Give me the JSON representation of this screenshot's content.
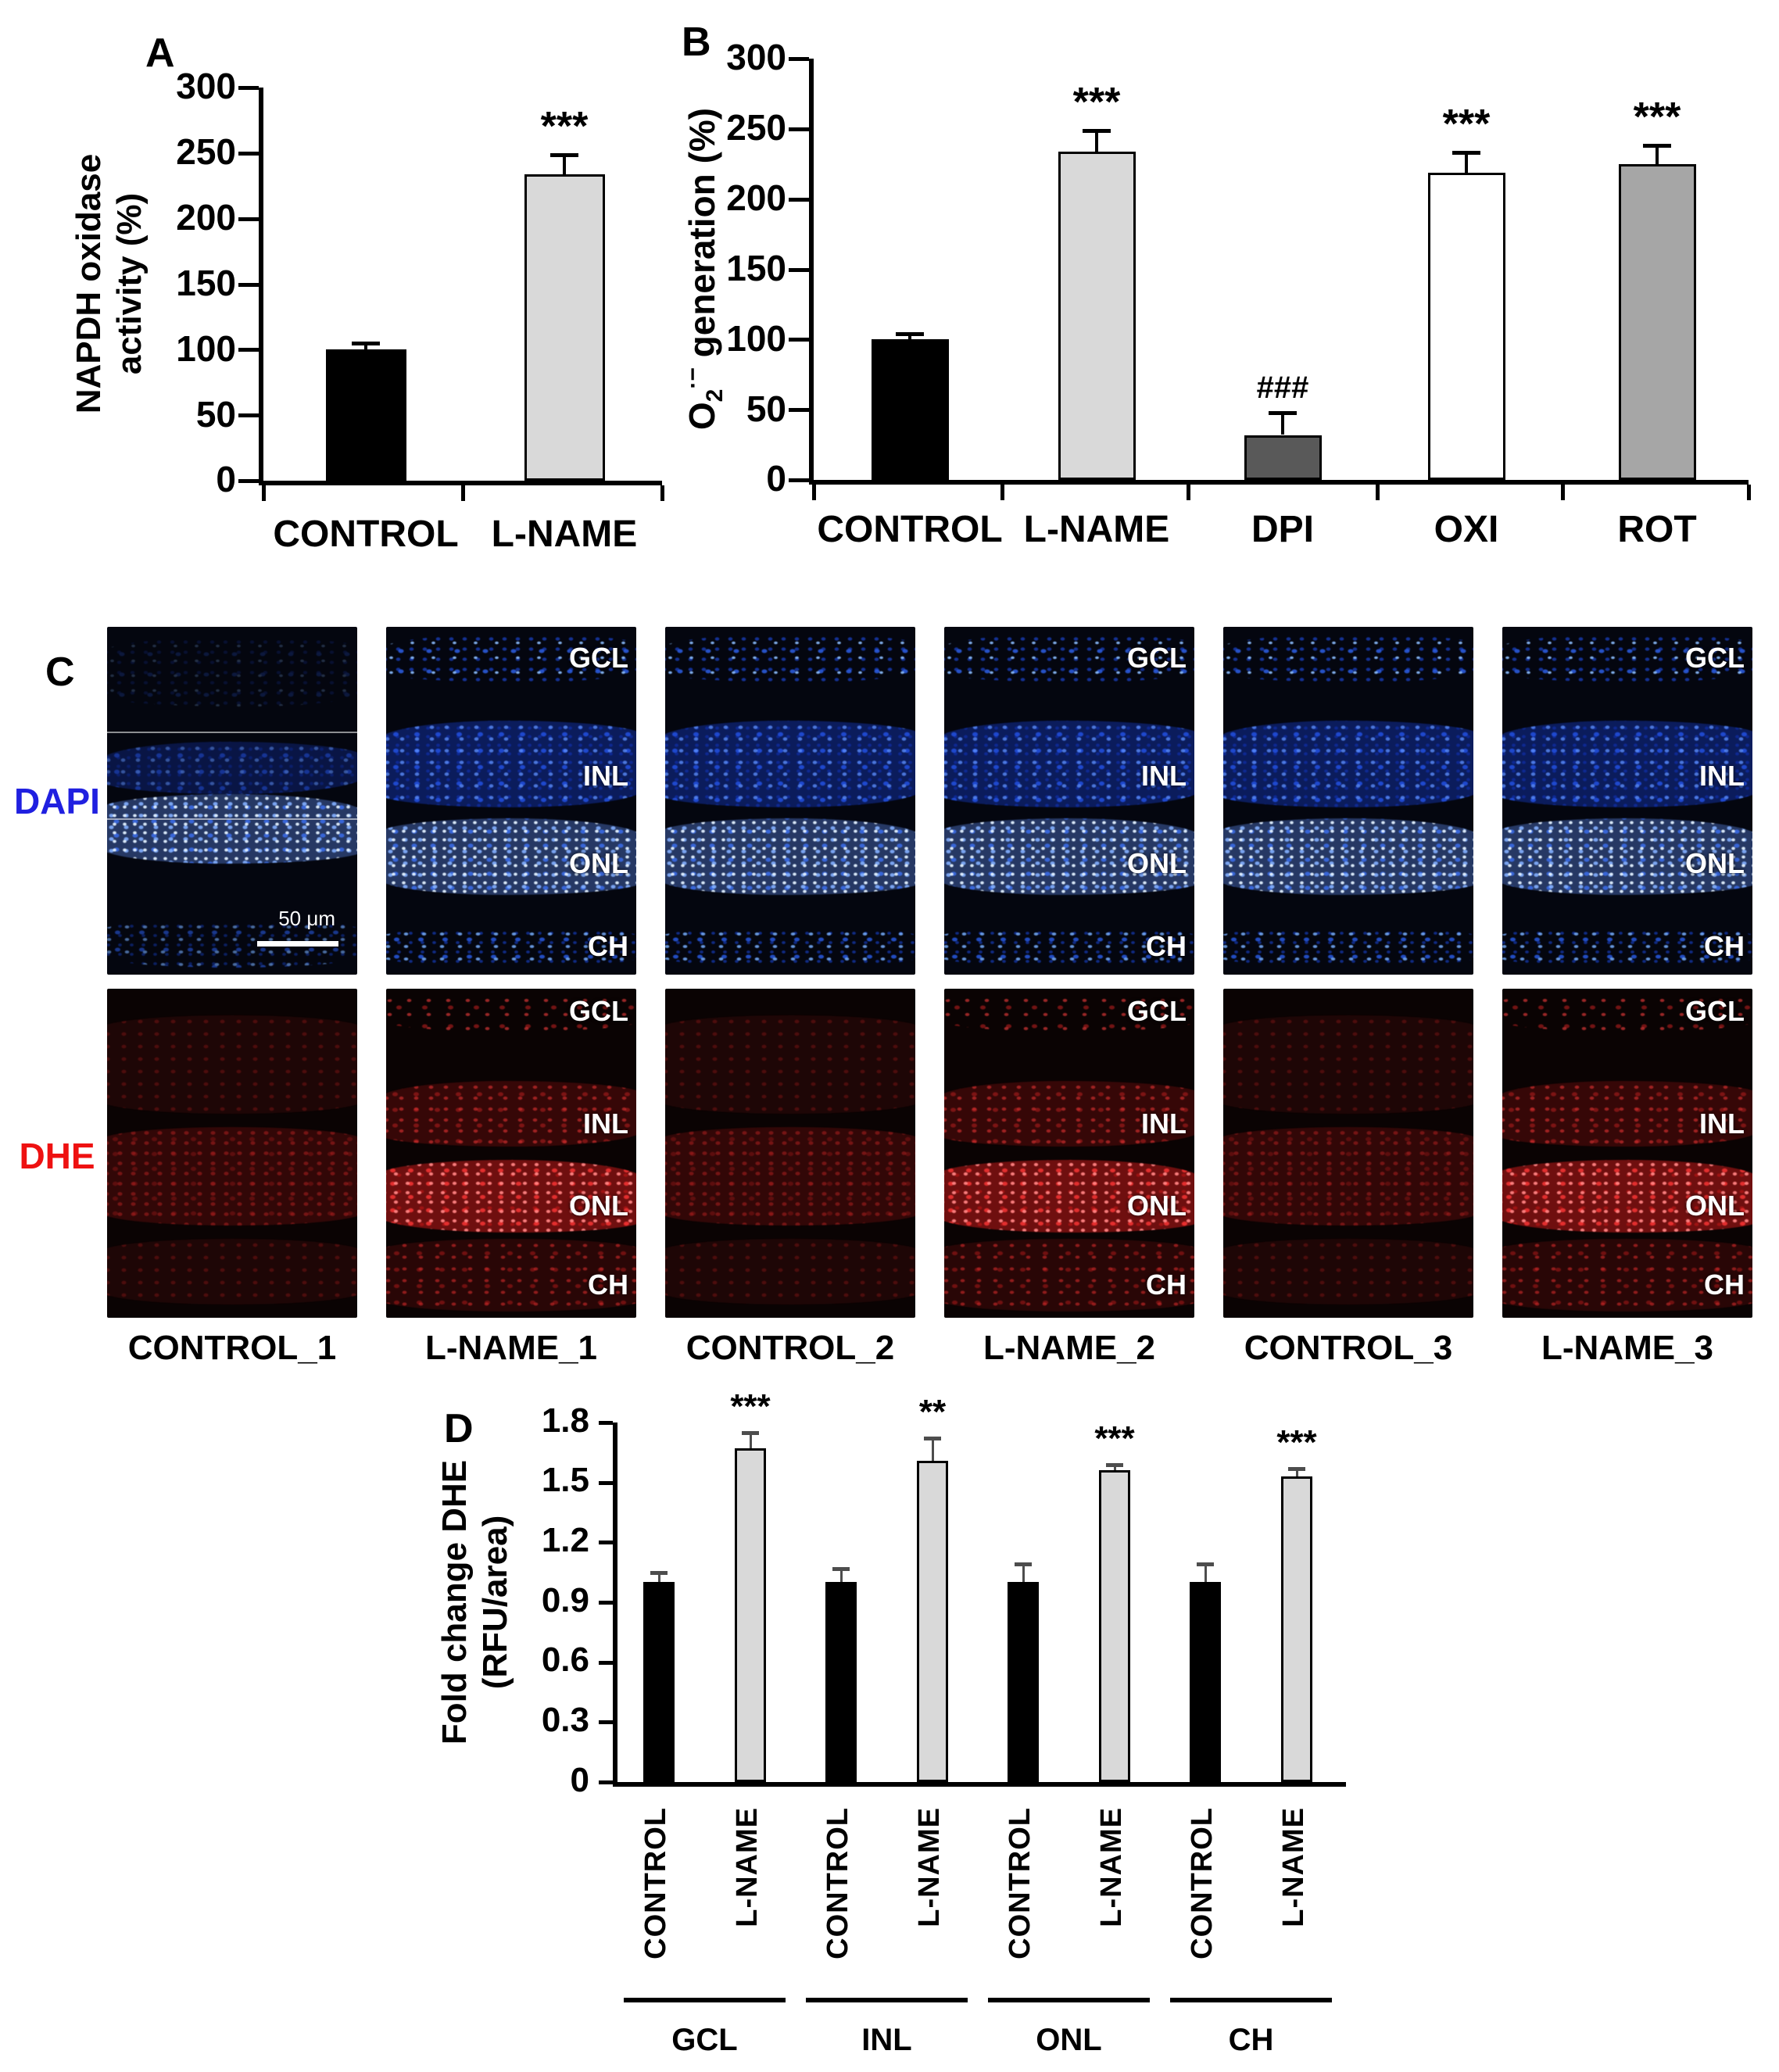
{
  "panel_labels": {
    "a": "A",
    "b": "B",
    "c": "C",
    "d": "D"
  },
  "chart_data": [
    {
      "id": "A",
      "type": "bar",
      "title": "",
      "ylabel": "NAPDH oxidase activity (%)",
      "ylabel_lines": [
        "NAPDH oxidase",
        "activity  (%)"
      ],
      "categories": [
        "CONTROL",
        "L-NAME"
      ],
      "values": [
        100,
        234
      ],
      "errors": [
        5,
        15
      ],
      "significance": [
        "",
        "***"
      ],
      "bar_colors": [
        "#000000",
        "#d9d9d9"
      ],
      "ylim": [
        0,
        300
      ],
      "yticks": [
        0,
        50,
        100,
        150,
        200,
        250,
        300
      ],
      "grid": false,
      "legend": null
    },
    {
      "id": "B",
      "type": "bar",
      "title": "",
      "ylabel": "O2·− generation (%)",
      "ylabel_rich": {
        "base": "O",
        "sub": "2",
        "sup": "·−",
        "rest": " generation (%)"
      },
      "categories": [
        "CONTROL",
        "L-NAME",
        "DPI",
        "OXI",
        "ROT"
      ],
      "values": [
        100,
        234,
        32,
        219,
        225
      ],
      "errors": [
        4,
        15,
        16,
        14,
        13
      ],
      "significance": [
        "",
        "***",
        "###",
        "***",
        "***"
      ],
      "bar_colors": [
        "#000000",
        "#d9d9d9",
        "#595959",
        "#ffffff",
        "#a6a6a6"
      ],
      "ylim": [
        0,
        300
      ],
      "yticks": [
        0,
        50,
        100,
        150,
        200,
        250,
        300
      ],
      "grid": false,
      "legend": null
    },
    {
      "id": "D",
      "type": "bar",
      "title": "",
      "ylabel": "Fold change DHE (RFU/area)",
      "ylabel_lines": [
        "Fold change DHE",
        "(RFU/area)"
      ],
      "group_labels": [
        "GCL",
        "INL",
        "ONL",
        "CH"
      ],
      "categories": [
        "CONTROL",
        "L-NAME",
        "CONTROL",
        "L-NAME",
        "CONTROL",
        "L-NAME",
        "CONTROL",
        "L-NAME"
      ],
      "values": [
        1.0,
        1.67,
        1.0,
        1.61,
        1.0,
        1.56,
        1.0,
        1.53
      ],
      "errors": [
        0.05,
        0.08,
        0.07,
        0.11,
        0.09,
        0.03,
        0.09,
        0.04
      ],
      "significance": [
        "",
        "***",
        "",
        "**",
        "",
        "***",
        "",
        "***"
      ],
      "bar_colors": [
        "#000000",
        "#d9d9d9",
        "#000000",
        "#d9d9d9",
        "#000000",
        "#d9d9d9",
        "#000000",
        "#d9d9d9"
      ],
      "ylim": [
        0,
        1.8
      ],
      "yticks": [
        0,
        0.3,
        0.6,
        0.9,
        1.2,
        1.5,
        1.8
      ],
      "grid": false,
      "legend": null
    }
  ],
  "panel_c": {
    "row_labels": [
      {
        "text": "DAPI",
        "color": "#2020e0"
      },
      {
        "text": "DHE",
        "color": "#ee1111"
      }
    ],
    "columns": [
      {
        "label": "CONTROL_1",
        "treated": false
      },
      {
        "label": "L-NAME_1",
        "treated": true
      },
      {
        "label": "CONTROL_2",
        "treated": false
      },
      {
        "label": "L-NAME_2",
        "treated": true
      },
      {
        "label": "CONTROL_3",
        "treated": false
      },
      {
        "label": "L-NAME_3",
        "treated": true
      }
    ],
    "layer_labels": [
      "GCL",
      "INL",
      "ONL",
      "CH"
    ],
    "scale_bar_text": "50 μm"
  }
}
